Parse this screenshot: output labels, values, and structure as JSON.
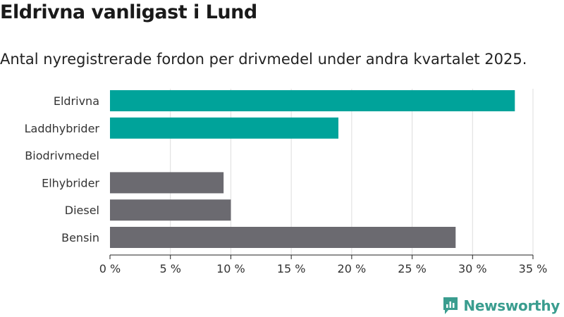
{
  "title": "Eldrivna vanligast i Lund",
  "subtitle": "Antal nyregistrerade fordon per drivmedel under andra kvartalet 2025.",
  "brand": "Newsworthy",
  "colors": {
    "highlight": "#00a39a",
    "default": "#6b6a70",
    "grid": "#dddddd",
    "axis": "#222222"
  },
  "chart_data": {
    "type": "bar",
    "orientation": "horizontal",
    "categories": [
      "Eldrivna",
      "Laddhybrider",
      "Biodrivmedel",
      "Elhybrider",
      "Diesel",
      "Bensin"
    ],
    "values": [
      33.5,
      18.9,
      0,
      9.4,
      10.0,
      28.6
    ],
    "highlighted": [
      true,
      true,
      true,
      false,
      false,
      false
    ],
    "xlim": [
      0,
      35
    ],
    "ticks": [
      0,
      5,
      10,
      15,
      20,
      25,
      30,
      35
    ],
    "tick_labels": [
      "0 %",
      "5 %",
      "10 %",
      "15 %",
      "20 %",
      "25 %",
      "30 %",
      "35 %"
    ],
    "grid": true
  }
}
